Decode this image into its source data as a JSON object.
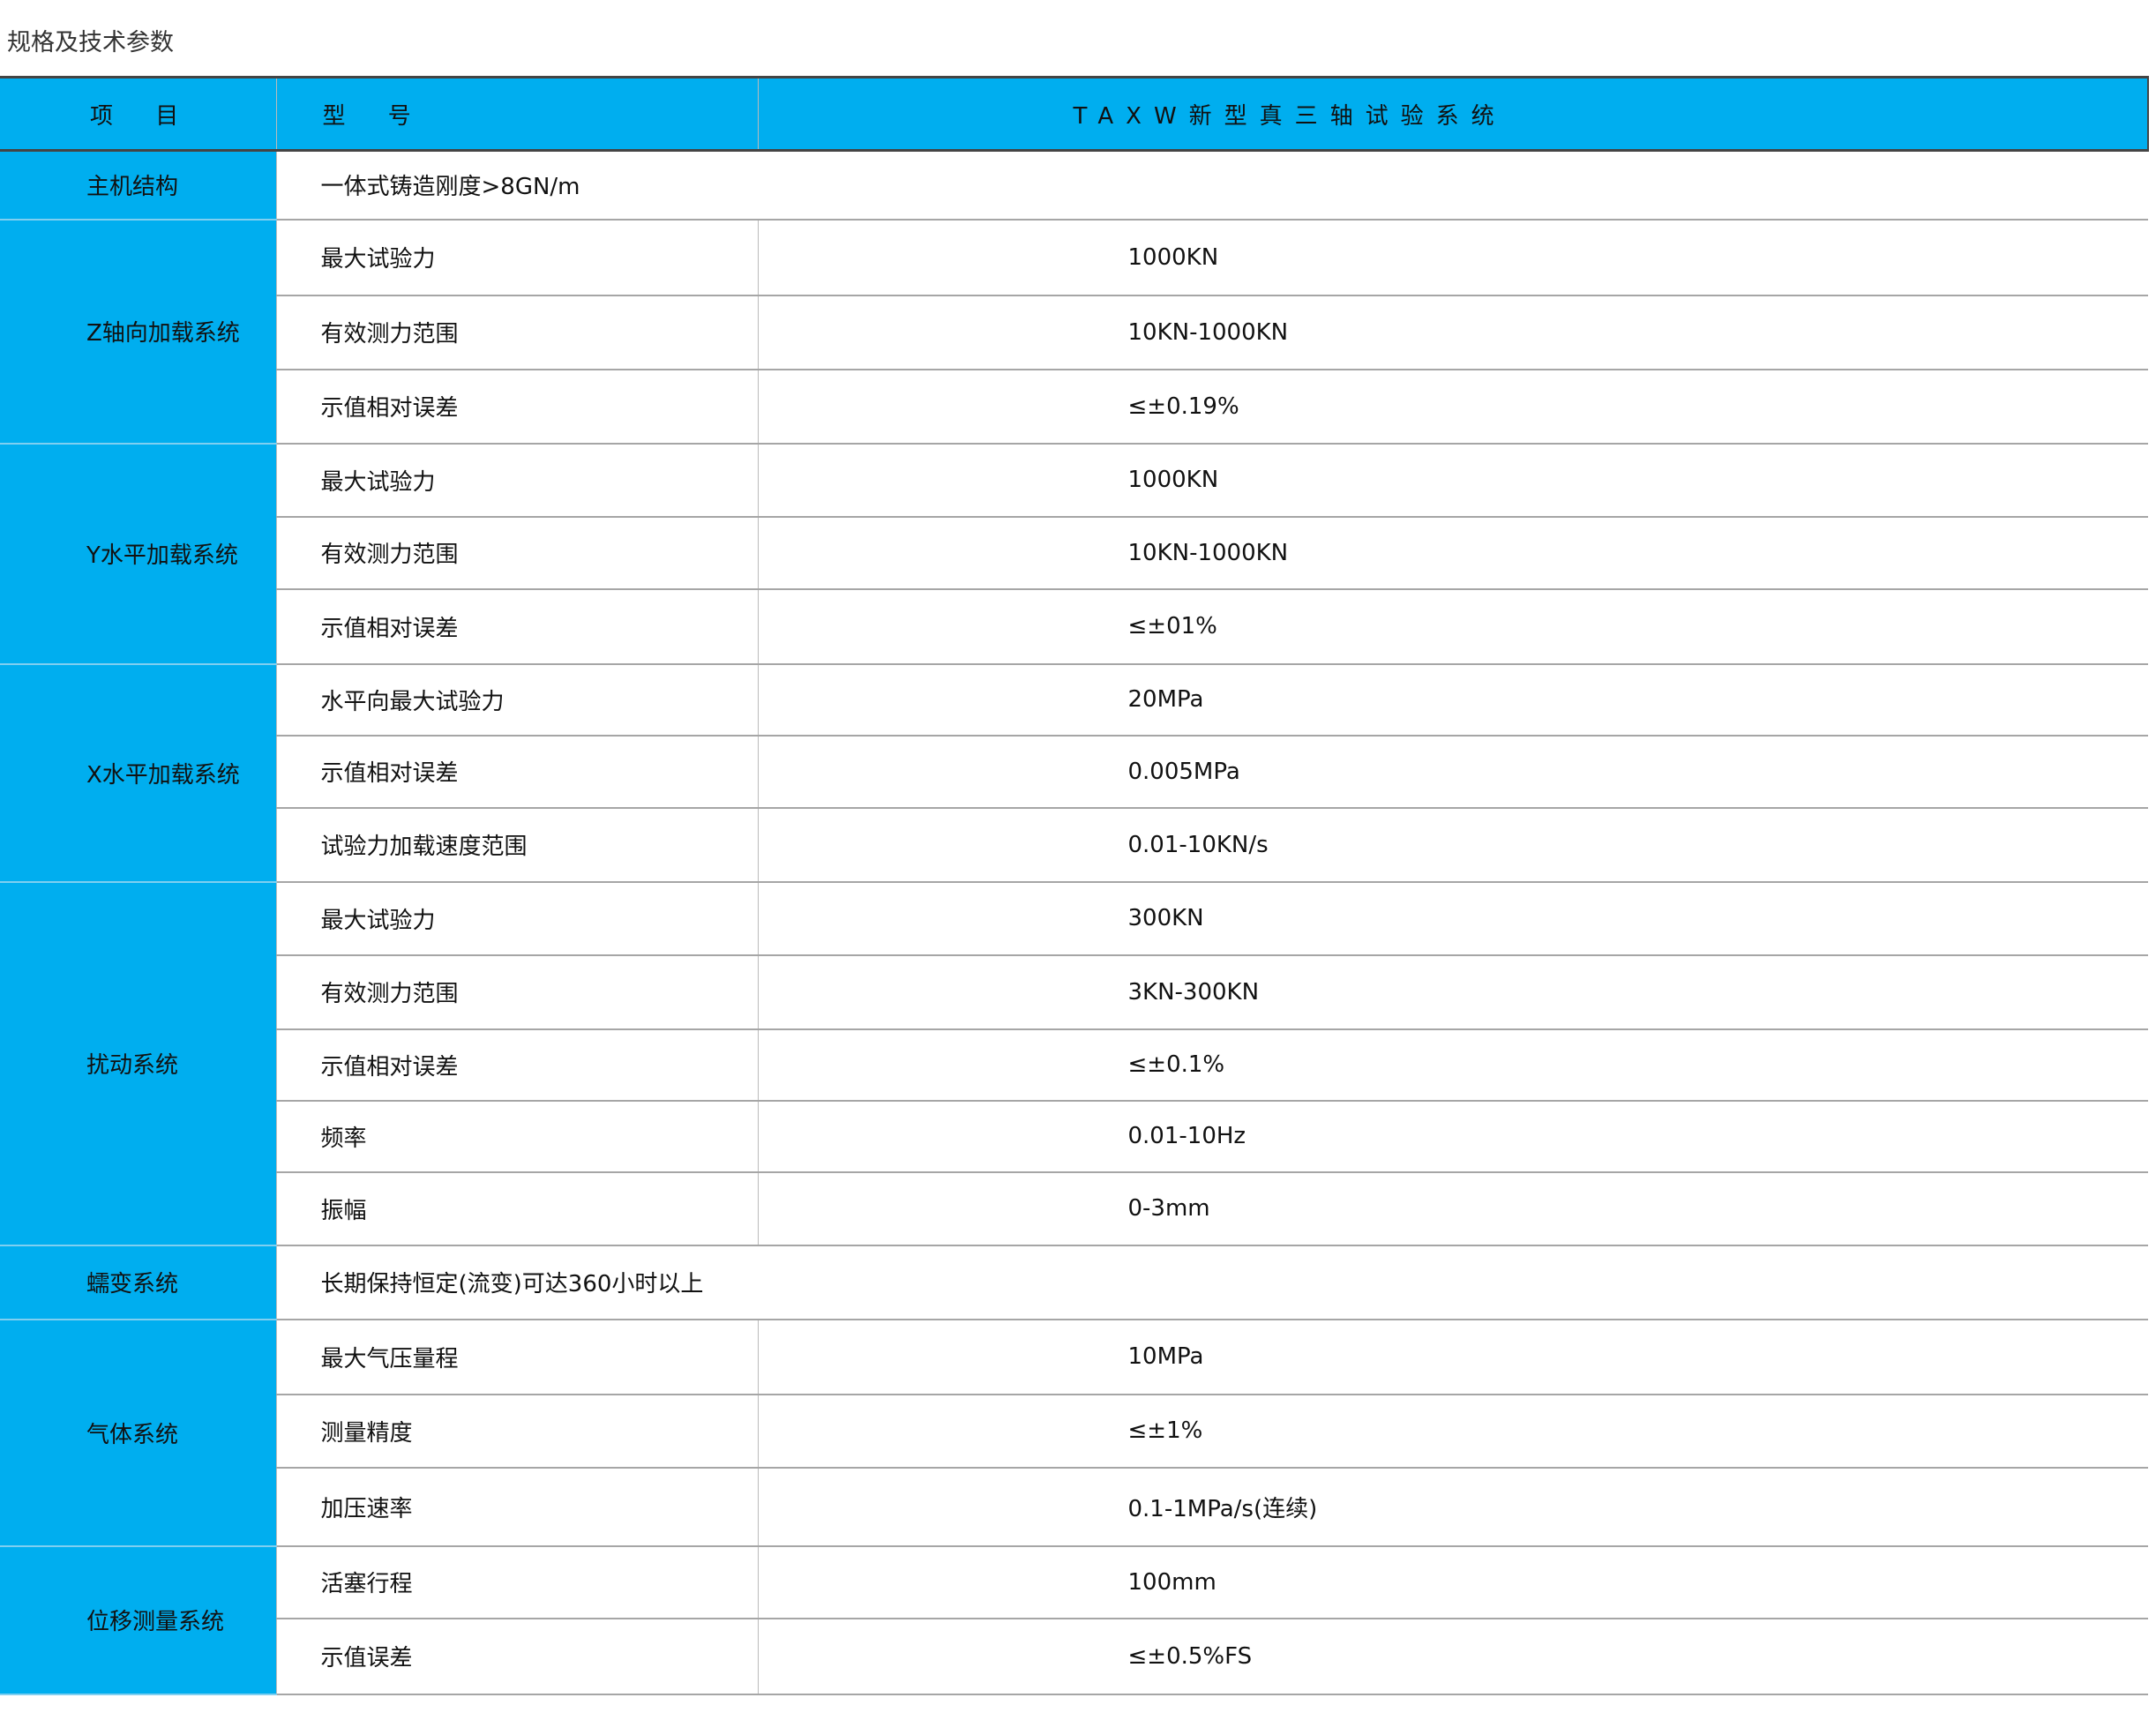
{
  "title": "规格及技术参数",
  "header": {
    "item": "项 目",
    "model": "型 号",
    "product": "TAXW新型真三轴试验系统"
  },
  "colors": {
    "accent": "#00AEEF"
  },
  "groups": [
    {
      "category": "主机结构",
      "span_text": "一体式铸造刚度>8GN/m",
      "heights": [
        78
      ]
    },
    {
      "category": "Z轴向加载系统",
      "heights": [
        86,
        84,
        84
      ],
      "rows": [
        {
          "param": "最大试验力",
          "value": "1000KN"
        },
        {
          "param": "有效测力范围",
          "value": "10KN-1000KN"
        },
        {
          "param": "示值相对误差",
          "value": "≤±0.19%"
        }
      ]
    },
    {
      "category": "Y水平加载系统",
      "heights": [
        83,
        82,
        85
      ],
      "rows": [
        {
          "param": "最大试验力",
          "value": "1000KN"
        },
        {
          "param": "有效测力范围",
          "value": "10KN-1000KN"
        },
        {
          "param": "示值相对误差",
          "value": "≤±01%"
        }
      ]
    },
    {
      "category": "X水平加载系统",
      "heights": [
        81,
        82,
        84
      ],
      "rows": [
        {
          "param": "水平向最大试验力",
          "value": "20MPa"
        },
        {
          "param": "示值相对误差",
          "value": "0.005MPa"
        },
        {
          "param": "试验力加载速度范围",
          "value": "0.01-10KN/s"
        }
      ]
    },
    {
      "category": "扰动系统",
      "heights": [
        83,
        84,
        81,
        81,
        83
      ],
      "rows": [
        {
          "param": "最大试验力",
          "value": "300KN"
        },
        {
          "param": "有效测力范围",
          "value": "3KN-300KN"
        },
        {
          "param": "示值相对误差",
          "value": "≤±0.1%"
        },
        {
          "param": "频率",
          "value": "0.01-10Hz"
        },
        {
          "param": "振幅",
          "value": "0-3mm"
        }
      ]
    },
    {
      "category": "蠕变系统",
      "span_text": "长期保持恒定(流变)可达360小时以上",
      "heights": [
        84
      ]
    },
    {
      "category": "气体系统",
      "heights": [
        85,
        83,
        89
      ],
      "rows": [
        {
          "param": "最大气压量程",
          "value": "10MPa"
        },
        {
          "param": "测量精度",
          "value": "≤±1%"
        },
        {
          "param": "加压速率",
          "value": "0.1-1MPa/s(连续)"
        }
      ]
    },
    {
      "category": "位移测量系统",
      "heights": [
        82,
        86
      ],
      "rows": [
        {
          "param": "活塞行程",
          "value": "100mm"
        },
        {
          "param": "示值误差",
          "value": "≤±0.5%FS"
        }
      ]
    }
  ]
}
